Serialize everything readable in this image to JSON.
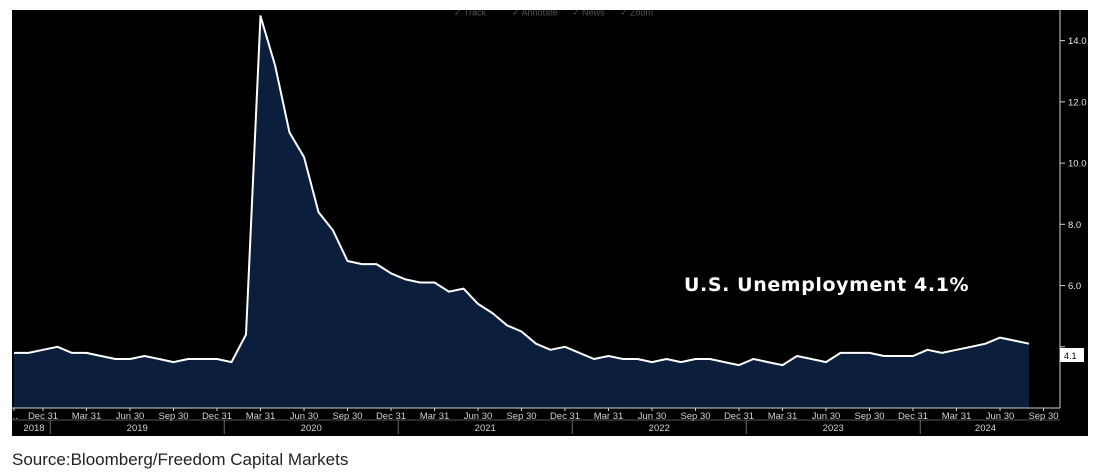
{
  "toolbar": {
    "items": [
      "Track",
      "Annotate",
      "News",
      "Zoom"
    ]
  },
  "source": "Source:Bloomberg/Freedom Capital Markets",
  "chart_data": {
    "type": "area",
    "title": "",
    "annotation": "U.S. Unemployment 4.1%",
    "last_value_label": "4.1",
    "ylim": [
      2.0,
      15.0
    ],
    "yticks": [
      4.0,
      6.0,
      8.0,
      10.0,
      12.0,
      14.0
    ],
    "ytick_labels": [
      "",
      "6.0",
      "8.0",
      "10.0",
      "12.0",
      "14.0"
    ],
    "grid": false,
    "legend": "none",
    "colors": {
      "area": "#0b1f3d",
      "line": "#ffffff",
      "background": "#000000",
      "last_label_bg": "#ffffff"
    },
    "start_month": "2018-10",
    "xticks": [
      {
        "label": "...",
        "month_index": 0
      },
      {
        "label": "Dec 31",
        "month_index": 2
      },
      {
        "label": "Mar 31",
        "month_index": 5
      },
      {
        "label": "Jun 30",
        "month_index": 8
      },
      {
        "label": "Sep 30",
        "month_index": 11
      },
      {
        "label": "Dec 31",
        "month_index": 14
      },
      {
        "label": "Mar 31",
        "month_index": 17
      },
      {
        "label": "Jun 30",
        "month_index": 20
      },
      {
        "label": "Sep 30",
        "month_index": 23
      },
      {
        "label": "Dec 31",
        "month_index": 26
      },
      {
        "label": "Mar 31",
        "month_index": 29
      },
      {
        "label": "Jun 30",
        "month_index": 32
      },
      {
        "label": "Sep 30",
        "month_index": 35
      },
      {
        "label": "Dec 31",
        "month_index": 38
      },
      {
        "label": "Mar 31",
        "month_index": 41
      },
      {
        "label": "Jun 30",
        "month_index": 44
      },
      {
        "label": "Sep 30",
        "month_index": 47
      },
      {
        "label": "Dec 31",
        "month_index": 50
      },
      {
        "label": "Mar 31",
        "month_index": 53
      },
      {
        "label": "Jun 30",
        "month_index": 56
      },
      {
        "label": "Sep 30",
        "month_index": 59
      },
      {
        "label": "Dec 31",
        "month_index": 62
      },
      {
        "label": "Mar 31",
        "month_index": 65
      },
      {
        "label": "Jun 30",
        "month_index": 68
      },
      {
        "label": "Sep 30",
        "month_index": 71
      }
    ],
    "year_labels": [
      {
        "label": "2018",
        "start": 0,
        "end": 2.5
      },
      {
        "label": "2019",
        "start": 2.5,
        "end": 14.5
      },
      {
        "label": "2020",
        "start": 14.5,
        "end": 26.5
      },
      {
        "label": "2021",
        "start": 26.5,
        "end": 38.5
      },
      {
        "label": "2022",
        "start": 38.5,
        "end": 50.5
      },
      {
        "label": "2023",
        "start": 50.5,
        "end": 62.5
      },
      {
        "label": "2024",
        "start": 62.5,
        "end": 71.5
      }
    ],
    "series": [
      {
        "values": [
          3.8,
          3.8,
          3.9,
          4.0,
          3.8,
          3.8,
          3.7,
          3.6,
          3.6,
          3.7,
          3.6,
          3.5,
          3.6,
          3.6,
          3.6,
          3.5,
          4.4,
          14.8,
          13.2,
          11.0,
          10.2,
          8.4,
          7.8,
          6.8,
          6.7,
          6.7,
          6.4,
          6.2,
          6.1,
          6.1,
          5.8,
          5.9,
          5.4,
          5.1,
          4.7,
          4.5,
          4.1,
          3.9,
          4.0,
          3.8,
          3.6,
          3.7,
          3.6,
          3.6,
          3.5,
          3.6,
          3.5,
          3.6,
          3.6,
          3.5,
          3.4,
          3.6,
          3.5,
          3.4,
          3.7,
          3.6,
          3.5,
          3.8,
          3.8,
          3.8,
          3.7,
          3.7,
          3.7,
          3.9,
          3.8,
          3.9,
          4.0,
          4.1,
          4.3,
          4.2,
          4.1
        ]
      }
    ]
  }
}
